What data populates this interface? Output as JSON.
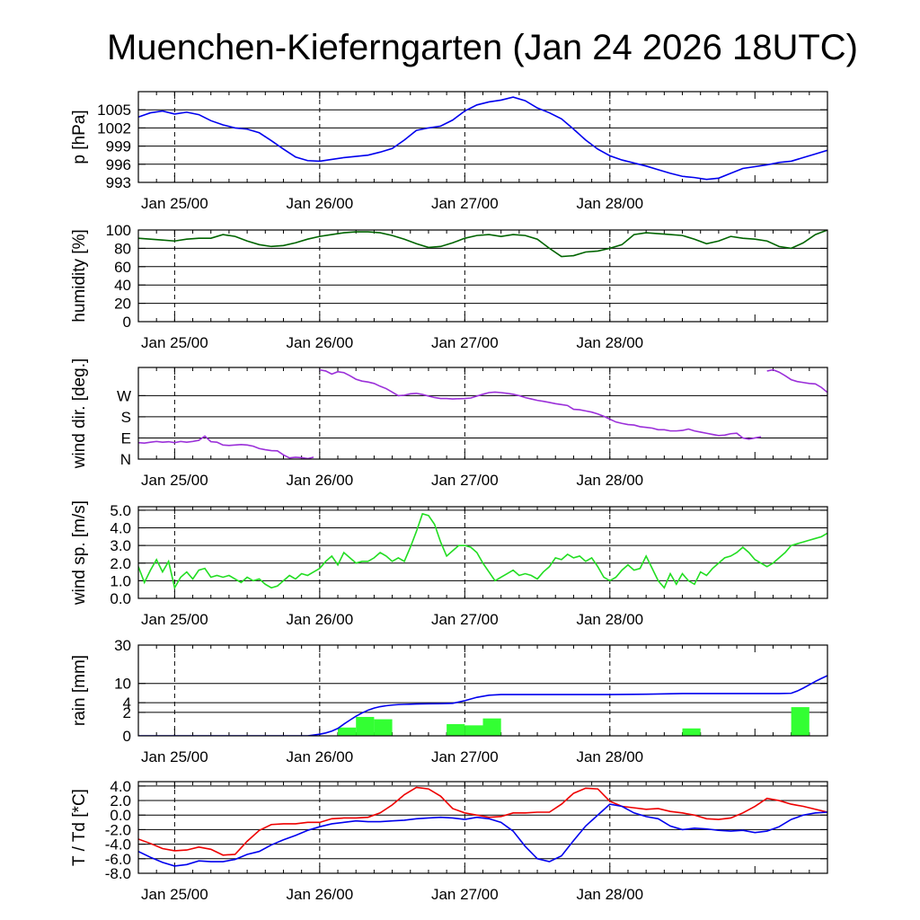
{
  "title": "Muenchen-Kieferngarten (Jan 24 2026 18UTC)",
  "x_tick_labels": [
    "Jan 25/00",
    "Jan 26/00",
    "Jan 27/00",
    "Jan 28/00"
  ],
  "chart_data": [
    {
      "type": "line",
      "ylabel": "p [hPa]",
      "ylim": [
        993,
        1008
      ],
      "y_ticks": [
        "1005",
        "1002",
        "999",
        "996",
        "993"
      ],
      "colors": {
        "line": "#0000ee"
      },
      "series": [
        {
          "x": [
            0,
            2,
            4,
            6,
            8,
            10,
            12,
            14,
            16,
            18,
            20,
            22,
            24,
            26,
            28,
            30,
            32,
            34,
            36,
            38,
            40,
            42,
            44,
            46,
            48,
            50,
            52,
            54,
            56,
            58,
            60,
            62,
            64,
            66,
            68,
            70,
            72,
            74,
            76,
            78,
            80,
            82,
            84,
            86,
            88,
            90,
            92,
            94,
            96,
            98,
            100,
            102,
            104,
            106,
            108,
            110,
            112,
            114
          ],
          "values": [
            1003.8,
            1004.5,
            1004.8,
            1004.3,
            1004.6,
            1004.2,
            1003.2,
            1002.5,
            1002.0,
            1001.8,
            1001.2,
            999.9,
            998.5,
            997.2,
            996.6,
            996.5,
            996.8,
            997.1,
            997.3,
            997.5,
            998.0,
            998.6,
            1000.0,
            1001.6,
            1002.0,
            1002.3,
            1003.3,
            1004.8,
            1005.8,
            1006.3,
            1006.6,
            1007.1,
            1006.5,
            1005.3,
            1004.5,
            1003.5,
            1001.8,
            1000.0,
            998.5,
            997.4,
            996.7,
            996.2,
            995.7,
            995.1,
            994.5,
            994.0,
            993.8,
            993.5,
            993.7,
            994.5,
            995.3,
            995.6,
            995.9,
            996.3,
            996.5,
            997.1,
            997.7,
            998.3
          ]
        }
      ]
    },
    {
      "type": "line",
      "ylabel": "humidity [%]",
      "ylim": [
        0,
        100
      ],
      "y_ticks": [
        "100",
        "80",
        "60",
        "40",
        "20",
        "0"
      ],
      "colors": {
        "line": "#006400"
      },
      "series": [
        {
          "x": [
            0,
            2,
            4,
            6,
            8,
            10,
            12,
            14,
            16,
            18,
            20,
            22,
            24,
            26,
            28,
            30,
            32,
            34,
            36,
            38,
            40,
            42,
            44,
            46,
            48,
            50,
            52,
            54,
            56,
            58,
            60,
            62,
            64,
            66,
            68,
            70,
            72,
            74,
            76,
            78,
            80,
            82,
            84,
            86,
            88,
            90,
            92,
            94,
            96,
            98,
            100,
            102,
            104,
            106,
            108,
            110,
            112,
            114
          ],
          "values": [
            91,
            90,
            89,
            88,
            90,
            91,
            91,
            95,
            93,
            88,
            84,
            82,
            83,
            86,
            90,
            93,
            95,
            97,
            98,
            98,
            97,
            94,
            90,
            85,
            81,
            82,
            86,
            91,
            94,
            95,
            93,
            95,
            94,
            90,
            80,
            71,
            72,
            76,
            77,
            80,
            84,
            95,
            97,
            96,
            95,
            94,
            90,
            85,
            88,
            93,
            91,
            90,
            88,
            82,
            80,
            86,
            95,
            100
          ]
        }
      ]
    },
    {
      "type": "scatter",
      "ylabel": "wind dir. [deg.]",
      "ylim": [
        0,
        390
      ],
      "y_ticks": [
        "W",
        "S",
        "E",
        "N"
      ],
      "colors": {
        "line": "#9b30d9"
      },
      "series": [
        {
          "x": [
            0,
            1,
            2,
            3,
            4,
            5,
            6,
            7,
            8,
            9,
            10,
            11,
            12,
            13,
            14,
            15,
            16,
            17,
            18,
            19,
            20,
            21,
            22,
            23,
            24,
            25,
            26,
            27,
            28,
            29,
            30,
            31,
            32,
            33,
            34,
            35,
            36,
            37,
            38,
            39,
            40,
            41,
            42,
            43,
            44,
            45,
            46,
            47,
            48,
            49,
            50,
            51,
            52,
            53,
            54,
            55,
            56,
            57,
            58,
            59,
            60,
            61,
            62,
            63,
            64,
            65,
            66,
            67,
            68,
            69,
            70,
            71,
            72,
            73,
            74,
            75,
            76,
            77,
            78,
            79,
            80,
            81,
            82,
            83,
            84,
            85,
            86,
            87,
            88,
            89,
            90,
            91,
            92,
            93,
            94,
            95,
            96,
            97,
            98,
            99,
            100,
            101,
            102,
            103,
            104,
            105,
            106,
            107,
            108,
            109,
            110,
            111,
            112,
            113,
            114
          ],
          "values": [
            70,
            68,
            72,
            75,
            72,
            74,
            70,
            75,
            72,
            75,
            80,
            98,
            74,
            72,
            60,
            58,
            60,
            62,
            60,
            55,
            45,
            40,
            36,
            35,
            18,
            5,
            8,
            6,
            2,
            8,
            380,
            375,
            362,
            372,
            368,
            355,
            340,
            332,
            328,
            322,
            310,
            300,
            285,
            270,
            272,
            278,
            280,
            275,
            268,
            262,
            258,
            258,
            256,
            257,
            258,
            260,
            268,
            276,
            283,
            285,
            283,
            280,
            276,
            270,
            262,
            256,
            250,
            246,
            241,
            236,
            232,
            228,
            212,
            210,
            205,
            200,
            192,
            182,
            170,
            158,
            152,
            147,
            145,
            138,
            135,
            132,
            125,
            125,
            120,
            120,
            122,
            128,
            120,
            115,
            110,
            105,
            100,
            102,
            108,
            110,
            90,
            85,
            90,
            95,
            375,
            380,
            370,
            355,
            338,
            330,
            326,
            322,
            320,
            305,
            284
          ]
        }
      ]
    },
    {
      "type": "line",
      "ylabel": "wind sp. [m/s]",
      "ylim": [
        0,
        5.2
      ],
      "y_ticks": [
        "5.0",
        "4.0",
        "3.0",
        "2.0",
        "1.0",
        "0.0"
      ],
      "colors": {
        "line": "#22dd22"
      },
      "series": [
        {
          "x": [
            0,
            1,
            2,
            3,
            4,
            5,
            6,
            7,
            8,
            9,
            10,
            11,
            12,
            13,
            14,
            15,
            16,
            17,
            18,
            19,
            20,
            21,
            22,
            23,
            24,
            25,
            26,
            27,
            28,
            29,
            30,
            31,
            32,
            33,
            34,
            35,
            36,
            37,
            38,
            39,
            40,
            41,
            42,
            43,
            44,
            45,
            46,
            47,
            48,
            49,
            50,
            51,
            52,
            53,
            54,
            55,
            56,
            57,
            58,
            59,
            60,
            61,
            62,
            63,
            64,
            65,
            66,
            67,
            68,
            69,
            70,
            71,
            72,
            73,
            74,
            75,
            76,
            77,
            78,
            79,
            80,
            81,
            82,
            83,
            84,
            85,
            86,
            87,
            88,
            89,
            90,
            91,
            92,
            93,
            94,
            95,
            96,
            97,
            98,
            99,
            100,
            101,
            102,
            103,
            104,
            105,
            106,
            107,
            108,
            109,
            110,
            111,
            112,
            113,
            114
          ],
          "values": [
            1.8,
            0.9,
            1.6,
            2.2,
            1.5,
            2.1,
            0.6,
            1.2,
            1.5,
            1.1,
            1.6,
            1.7,
            1.2,
            1.3,
            1.2,
            1.3,
            1.1,
            0.9,
            1.2,
            1.0,
            1.1,
            0.8,
            0.6,
            0.7,
            1.0,
            1.3,
            1.1,
            1.4,
            1.3,
            1.5,
            1.7,
            2.1,
            2.4,
            1.9,
            2.6,
            2.3,
            2.0,
            2.1,
            2.1,
            2.3,
            2.6,
            2.4,
            2.1,
            2.3,
            2.1,
            2.9,
            3.8,
            4.8,
            4.7,
            4.2,
            3.2,
            2.4,
            2.7,
            3.0,
            3.0,
            2.9,
            2.6,
            2.0,
            1.5,
            1.0,
            1.2,
            1.4,
            1.6,
            1.3,
            1.4,
            1.3,
            1.1,
            1.5,
            1.8,
            2.3,
            2.2,
            2.5,
            2.3,
            2.4,
            2.1,
            2.3,
            1.8,
            1.2,
            1.0,
            1.2,
            1.6,
            1.9,
            1.6,
            1.7,
            2.4,
            1.7,
            1.0,
            0.6,
            1.4,
            0.8,
            1.4,
            1.0,
            0.8,
            1.5,
            1.3,
            1.7,
            2.0,
            2.3,
            2.4,
            2.6,
            2.9,
            2.6,
            2.2,
            2.0,
            1.8,
            2.0,
            2.3,
            2.6,
            3.0,
            3.1,
            3.2,
            3.3,
            3.4,
            3.5,
            3.7
          ]
        }
      ]
    },
    {
      "type": "bar",
      "ylabel": "rain [mm]",
      "ylim": [
        0,
        30
      ],
      "y_scale": "sqrt",
      "y_ticks": [
        "30",
        "10",
        "4",
        "2",
        "0"
      ],
      "colors": {
        "bar": "#33ff33",
        "line": "#0000ee"
      },
      "bars": {
        "x_start": [
          33,
          36,
          39,
          51,
          54,
          57,
          90,
          108
        ],
        "width": 3,
        "values": [
          0.25,
          1.3,
          1.0,
          0.5,
          0.4,
          1.1,
          0.2,
          3.0
        ]
      },
      "cumulative": {
        "x": [
          0,
          24,
          28,
          30,
          31,
          32,
          33,
          34,
          35,
          36,
          37,
          38,
          39,
          40,
          41,
          42,
          43,
          44,
          45,
          46,
          48,
          50,
          52,
          54,
          56,
          58,
          60,
          63,
          66,
          69,
          72,
          75,
          78,
          84,
          90,
          96,
          100,
          104,
          106,
          108,
          109,
          110,
          111,
          112,
          113,
          114
        ],
        "values": [
          0,
          0,
          0,
          0.01,
          0.03,
          0.08,
          0.2,
          0.5,
          0.9,
          1.4,
          1.9,
          2.4,
          2.8,
          3.1,
          3.3,
          3.45,
          3.55,
          3.6,
          3.65,
          3.7,
          3.75,
          3.78,
          3.85,
          4.5,
          5.4,
          6.0,
          6.2,
          6.2,
          6.2,
          6.2,
          6.2,
          6.2,
          6.2,
          6.3,
          6.5,
          6.5,
          6.5,
          6.5,
          6.5,
          6.6,
          7.3,
          8.3,
          9.5,
          10.8,
          12.0,
          13.2
        ]
      }
    },
    {
      "type": "line",
      "ylabel": "T / Td [*C]",
      "ylim": [
        -8,
        4.6
      ],
      "y_ticks": [
        "4.0",
        "2.0",
        "0.0",
        "-2.0",
        "-4.0",
        "-6.0",
        "-8.0"
      ],
      "colors": {
        "T": "#ee0000",
        "Td": "#0000ee"
      },
      "series": [
        {
          "x": [
            0,
            2,
            4,
            6,
            8,
            10,
            12,
            14,
            16,
            18,
            20,
            22,
            24,
            26,
            28,
            30,
            32,
            34,
            36,
            38,
            40,
            42,
            44,
            46,
            48,
            50,
            52,
            54,
            56,
            58,
            60,
            62,
            64,
            66,
            68,
            70,
            72,
            74,
            76,
            78,
            80,
            82,
            84,
            86,
            88,
            90,
            92,
            94,
            96,
            98,
            100,
            102,
            104,
            106,
            108,
            110,
            112,
            114
          ],
          "values": [
            -3.3,
            -3.9,
            -4.6,
            -4.9,
            -4.8,
            -4.4,
            -4.7,
            -5.5,
            -5.4,
            -3.6,
            -2.1,
            -1.3,
            -1.2,
            -1.2,
            -1.0,
            -1.0,
            -0.5,
            -0.4,
            -0.4,
            -0.3,
            0.3,
            1.4,
            2.8,
            3.8,
            3.6,
            2.6,
            0.9,
            0.3,
            0.0,
            -0.3,
            -0.2,
            0.3,
            0.3,
            0.4,
            0.4,
            1.5,
            3.0,
            3.7,
            3.6,
            1.9,
            1.2,
            1.0,
            0.8,
            0.9,
            0.5,
            0.3,
            0.0,
            -0.5,
            -0.6,
            -0.4,
            0.3,
            1.2,
            2.3,
            2.0,
            1.5,
            1.2,
            0.8,
            0.4
          ]
        },
        {
          "x": [
            0,
            2,
            4,
            6,
            8,
            10,
            12,
            14,
            16,
            18,
            20,
            22,
            24,
            26,
            28,
            30,
            32,
            34,
            36,
            38,
            40,
            42,
            44,
            46,
            48,
            50,
            52,
            54,
            56,
            58,
            60,
            62,
            64,
            66,
            68,
            70,
            72,
            74,
            76,
            78,
            80,
            82,
            84,
            86,
            88,
            90,
            92,
            94,
            96,
            98,
            100,
            102,
            104,
            106,
            108,
            110,
            112,
            114
          ],
          "values": [
            -5.0,
            -5.8,
            -6.5,
            -7.0,
            -6.8,
            -6.3,
            -6.4,
            -6.4,
            -6.1,
            -5.4,
            -5.0,
            -4.1,
            -3.4,
            -2.8,
            -2.1,
            -1.6,
            -1.2,
            -1.0,
            -0.8,
            -0.9,
            -0.9,
            -0.8,
            -0.7,
            -0.5,
            -0.4,
            -0.3,
            -0.4,
            -0.6,
            -0.3,
            -0.5,
            -1.0,
            -2.2,
            -4.3,
            -6.0,
            -6.4,
            -5.6,
            -3.5,
            -1.5,
            0.0,
            1.5,
            1.2,
            0.3,
            -0.2,
            -0.5,
            -1.5,
            -2.0,
            -1.8,
            -1.9,
            -2.1,
            -2.2,
            -2.1,
            -2.4,
            -2.2,
            -1.6,
            -0.6,
            0.0,
            0.3,
            0.4
          ]
        }
      ]
    }
  ]
}
